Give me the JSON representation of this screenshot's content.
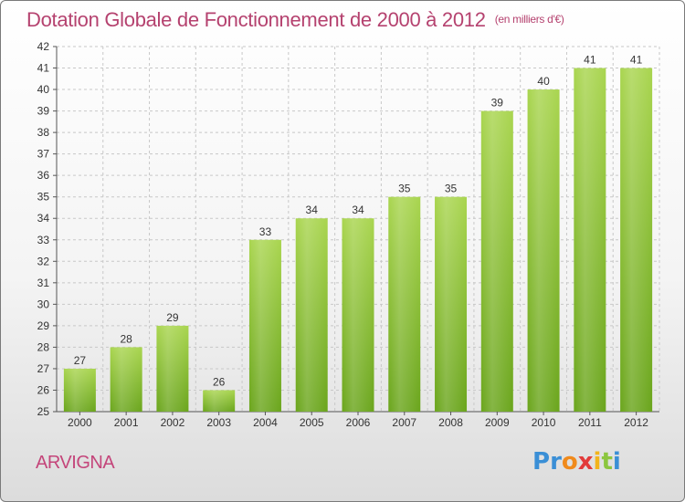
{
  "title": "Dotation Globale de Fonctionnement de 2000 à 2012",
  "subtitle": "(en milliers d'€)",
  "commune": "ARVIGNA",
  "logo": {
    "letters": [
      "P",
      "r",
      "o",
      "x",
      "i",
      "t",
      "i"
    ],
    "colors": [
      "#3a8fd6",
      "#3a8fd6",
      "#f08a1c",
      "#e23b3b",
      "#f2b41c",
      "#8cc63f",
      "#3a8fd6"
    ]
  },
  "colors": {
    "bar_top": "#a9d54f",
    "bar_bottom": "#6aa51c",
    "title": "#b5426f",
    "grid": "#c8c8c8"
  },
  "chart_data": {
    "type": "bar",
    "categories": [
      "2000",
      "2001",
      "2002",
      "2003",
      "2004",
      "2005",
      "2006",
      "2007",
      "2008",
      "2009",
      "2010",
      "2011",
      "2012"
    ],
    "values": [
      27,
      28,
      29,
      26,
      33,
      34,
      34,
      35,
      35,
      39,
      40,
      41,
      41
    ],
    "yticks": [
      25,
      26,
      27,
      28,
      29,
      30,
      31,
      32,
      33,
      34,
      35,
      36,
      37,
      38,
      39,
      40,
      41,
      42
    ],
    "ylim": [
      25,
      42
    ],
    "grid": true,
    "legend": "none"
  }
}
